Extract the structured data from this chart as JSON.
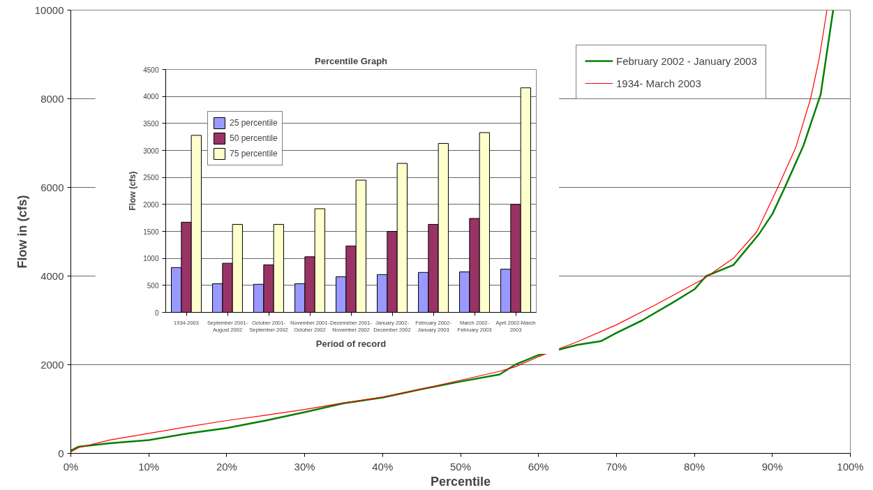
{
  "chart_data": [
    {
      "type": "line",
      "xlabel": "Percentile",
      "ylabel": "Flow in (cfs)",
      "xlim": [
        0,
        100
      ],
      "ylim": [
        0,
        10000
      ],
      "xticks": [
        {
          "value": 0,
          "label": "0%"
        },
        {
          "value": 10,
          "label": "10%"
        },
        {
          "value": 20,
          "label": "20%"
        },
        {
          "value": 30,
          "label": "30%"
        },
        {
          "value": 40,
          "label": "40%"
        },
        {
          "value": 50,
          "label": "50%"
        },
        {
          "value": 60,
          "label": "60%"
        },
        {
          "value": 70,
          "label": "70%"
        },
        {
          "value": 80,
          "label": "80%"
        },
        {
          "value": 90,
          "label": "90%"
        },
        {
          "value": 100,
          "label": "100%"
        }
      ],
      "yticks": [
        0,
        2000,
        4000,
        6000,
        8000,
        10000
      ],
      "grid": "y",
      "legend": "top right",
      "marker": "none",
      "line_style": "solid",
      "series": [
        {
          "name": "February 2002 - January 2003",
          "color": "#008000",
          "x": [
            0,
            1,
            5,
            10,
            15,
            20,
            25,
            30,
            35,
            40,
            45,
            50,
            55,
            57,
            60,
            65,
            68,
            70,
            73.3,
            77.2,
            80,
            81.5,
            85,
            88.3,
            90,
            91.6,
            94,
            96.2,
            97.8
          ],
          "values": [
            60,
            150,
            230,
            300,
            450,
            570,
            740,
            930,
            1130,
            1260,
            1450,
            1620,
            1780,
            2000,
            2220,
            2450,
            2530,
            2720,
            3000,
            3400,
            3700,
            4000,
            4250,
            4950,
            5400,
            6000,
            6950,
            8100,
            10000
          ]
        },
        {
          "name": "1934- March 2003",
          "color": "#ff0000",
          "x": [
            0,
            1,
            5,
            10,
            15,
            20,
            25,
            30,
            35,
            40,
            45,
            50,
            55,
            57,
            60,
            65,
            70,
            75,
            81.3,
            85,
            88,
            90.7,
            93,
            94.9,
            96,
            97.0
          ],
          "values": [
            30,
            130,
            300,
            450,
            600,
            740,
            860,
            990,
            1140,
            1270,
            1450,
            1650,
            1850,
            1950,
            2180,
            2520,
            2900,
            3350,
            3950,
            4400,
            5000,
            6000,
            6900,
            8000,
            8900,
            10000
          ]
        }
      ]
    },
    {
      "type": "bar",
      "title": "Percentile Graph",
      "xlabel": "Period of record",
      "ylabel": "Flow (cfs)",
      "categories": [
        "1934-2003",
        "September 2001-\nAugust 2002",
        "October 2001-\nSeptember 2002",
        "November 2001-\nOctober 2002",
        "Decemeber 2001-\nNovember 2002",
        "January 2002-\nDecember 2002",
        "February 2002-\nJanuary 2003",
        "March 2002-\nFebruary 2003",
        "April 2002-March\n2003"
      ],
      "ylim": [
        0,
        4500
      ],
      "yticks": [
        0,
        500,
        1000,
        1500,
        2000,
        2500,
        3000,
        3500,
        4000,
        4500
      ],
      "grid": "y",
      "legend": "top left",
      "series": [
        {
          "name": "25 percentile",
          "color": "#9999ff",
          "values": [
            830,
            530,
            520,
            530,
            660,
            700,
            740,
            750,
            800
          ]
        },
        {
          "name": "50 percentile",
          "color": "#993366",
          "values": [
            1670,
            910,
            880,
            1030,
            1230,
            1500,
            1630,
            1740,
            2000
          ]
        },
        {
          "name": "75 percentile",
          "color": "#ffffcc",
          "values": [
            3280,
            1630,
            1630,
            1920,
            2450,
            2760,
            3130,
            3330,
            4160
          ]
        }
      ]
    }
  ]
}
